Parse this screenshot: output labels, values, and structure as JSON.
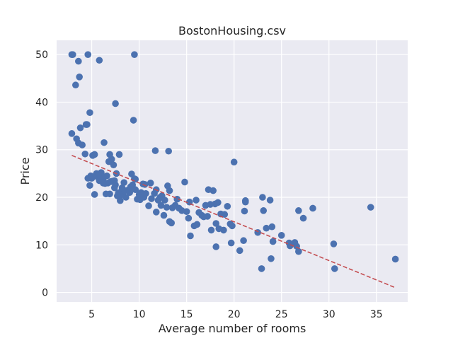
{
  "chart_data": {
    "type": "scatter",
    "title": "BostonHousing.csv",
    "xlabel": "Average number of rooms",
    "ylabel": "Price",
    "xlim": [
      1.3,
      38.3
    ],
    "ylim": [
      -2,
      53
    ],
    "xticks": [
      5,
      10,
      15,
      20,
      25,
      30,
      35
    ],
    "yticks": [
      0,
      10,
      20,
      30,
      40,
      50
    ],
    "grid": true,
    "colors": {
      "background": "#eaeaf2",
      "grid": "#ffffff",
      "points": "#4c72b0",
      "fit": "#c44e52"
    },
    "series": [
      {
        "type": "scatter",
        "x": [
          2.9,
          3.0,
          3.3,
          3.6,
          3.7,
          4.6,
          5.8,
          9.5,
          2.9,
          3.4,
          3.6,
          3.8,
          4.0,
          4.3,
          4.4,
          4.5,
          4.8,
          5.1,
          6.3,
          7.5,
          7.9,
          9.4,
          11.7,
          13.1,
          4.6,
          4.8,
          4.9,
          5.0,
          5.3,
          5.5,
          5.6,
          5.8,
          6.0,
          6.1,
          6.2,
          6.4,
          6.5,
          6.6,
          6.7,
          6.8,
          6.9,
          7.0,
          7.1,
          7.2,
          7.3,
          7.4,
          7.5,
          7.6,
          7.7,
          7.8,
          7.9,
          8.0,
          8.2,
          8.3,
          8.5,
          8.6,
          8.8,
          9.0,
          9.1,
          9.2,
          9.3,
          9.5,
          9.6,
          9.8,
          10.0,
          10.2,
          10.4,
          10.5,
          10.7,
          11.0,
          11.3,
          11.6,
          11.8,
          12.0,
          12.2,
          12.4,
          12.7,
          13.0,
          13.2,
          13.5,
          13.8,
          14.0,
          14.5,
          14.8,
          15.0,
          15.3,
          15.8,
          16.0,
          16.3,
          16.6,
          17.0,
          17.3,
          17.5,
          17.8,
          18.0,
          18.3,
          18.6,
          19.0,
          19.3,
          19.6,
          20.0,
          20.6,
          21.0,
          21.2,
          22.5,
          23.0,
          23.4,
          23.8,
          24.0,
          25.0,
          25.9,
          26.4,
          26.8,
          27.3,
          28.3,
          30.5,
          30.6,
          34.4,
          37.0,
          5.3,
          5.8,
          6.2,
          6.9,
          7.4,
          8.0,
          8.4,
          9.0,
          9.6,
          10.1,
          10.6,
          11.2,
          11.8,
          12.3,
          12.9,
          13.4,
          14.2,
          15.2,
          16.1,
          16.8,
          17.2,
          17.6,
          18.1,
          18.4,
          18.9,
          19.8,
          21.1,
          21.2,
          23.1,
          23.9,
          24.1,
          25.8,
          26.6,
          26.8,
          22.9,
          18.1,
          15.4,
          12.6,
          13.2,
          19.7
        ],
        "y": [
          50,
          50,
          43.6,
          48.6,
          45.3,
          50,
          48.8,
          50,
          33.4,
          32.3,
          31.4,
          34.6,
          31.0,
          29.1,
          35.3,
          35.3,
          37.8,
          28.8,
          31.5,
          39.7,
          29.0,
          36.2,
          29.8,
          29.7,
          24.0,
          22.5,
          24.5,
          24.0,
          20.6,
          25.0,
          24.3,
          23.5,
          25.2,
          24.5,
          23.0,
          22.9,
          20.7,
          24.5,
          23.0,
          27.5,
          29.0,
          23.3,
          28.0,
          23.4,
          26.8,
          22.0,
          22.6,
          25.0,
          20.3,
          20.9,
          21.0,
          20.4,
          22.0,
          20.6,
          21.4,
          20.0,
          21.5,
          21.7,
          22.2,
          24.9,
          22.6,
          23.9,
          21.6,
          19.6,
          20.6,
          21.0,
          22.8,
          20.0,
          20.8,
          18.2,
          19.7,
          20.8,
          21.6,
          19.4,
          20.0,
          20.3,
          19.4,
          22.4,
          21.4,
          17.8,
          18.3,
          19.6,
          17.2,
          23.2,
          17.0,
          19.0,
          14.0,
          19.4,
          16.8,
          16.2,
          18.3,
          21.6,
          18.5,
          21.4,
          18.6,
          18.9,
          16.5,
          16.4,
          18.1,
          14.4,
          27.4,
          8.8,
          10.9,
          19.3,
          12.6,
          20.0,
          13.5,
          19.4,
          13.8,
          12.0,
          9.8,
          10.5,
          17.2,
          15.6,
          17.7,
          10.2,
          5.0,
          17.9,
          7.0,
          29.0,
          24.8,
          23.9,
          20.7,
          23.5,
          19.3,
          23.1,
          21.0,
          23.8,
          19.5,
          22.7,
          23.0,
          16.9,
          18.3,
          17.9,
          14.6,
          17.7,
          15.6,
          14.3,
          15.9,
          16.0,
          13.1,
          14.5,
          13.4,
          13.1,
          14.0,
          17.1,
          19.0,
          17.2,
          7.1,
          10.7,
          10.4,
          9.7,
          8.6,
          5.0,
          9.6,
          11.9,
          16.2,
          14.9,
          10.4
        ]
      },
      {
        "type": "line",
        "x": [
          2.9,
          37.0
        ],
        "y": [
          28.8,
          1.0
        ]
      }
    ]
  }
}
